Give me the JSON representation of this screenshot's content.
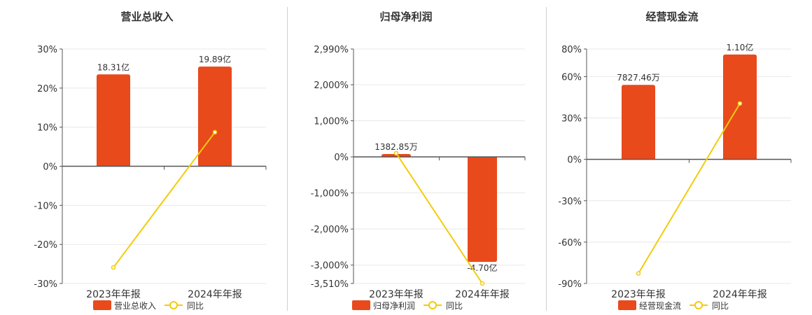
{
  "colors": {
    "bar": "#e84a1c",
    "line": "#f2cc0c",
    "grid": "#e8e8e8",
    "axis": "#555555",
    "text": "#333333",
    "divider": "#cfcfcf"
  },
  "chart_data": [
    {
      "type": "bar",
      "title": "营业总收入",
      "categories": [
        "2023年年报",
        "2024年年报"
      ],
      "series": [
        {
          "name": "营业总收入",
          "kind": "bar",
          "values": [
            23.5,
            25.5
          ],
          "labels": [
            "18.31亿",
            "19.89亿"
          ]
        },
        {
          "name": "同比",
          "kind": "line",
          "values": [
            -25.9,
            8.7
          ]
        }
      ],
      "ylim": [
        -30,
        30
      ],
      "yticks": [
        -30,
        -20,
        -10,
        0,
        10,
        20,
        30
      ],
      "ytick_labels": [
        "-30%",
        "-20%",
        "-10%",
        "0%",
        "10%",
        "20%",
        "30%"
      ],
      "grid": true,
      "legend": "bottom"
    },
    {
      "type": "bar",
      "title": "归母净利润",
      "categories": [
        "2023年年报",
        "2024年年报"
      ],
      "series": [
        {
          "name": "归母净利润",
          "kind": "bar",
          "values": [
            80,
            -2910
          ],
          "labels": [
            "1382.85万",
            "-4.70亿"
          ]
        },
        {
          "name": "同比",
          "kind": "line",
          "values": [
            100,
            -3510
          ]
        }
      ],
      "ylim": [
        -3510,
        2990
      ],
      "yticks": [
        -3510,
        -3000,
        -2000,
        -1000,
        0,
        1000,
        2000,
        2990
      ],
      "ytick_labels": [
        "-3,510%",
        "-3,000%",
        "-2,000%",
        "-1,000%",
        "0%",
        "1,000%",
        "2,000%",
        "2,990%"
      ],
      "grid": true,
      "legend": "bottom"
    },
    {
      "type": "bar",
      "title": "经营现金流",
      "categories": [
        "2023年年报",
        "2024年年报"
      ],
      "series": [
        {
          "name": "经营现金流",
          "kind": "bar",
          "values": [
            54,
            76
          ],
          "labels": [
            "7827.46万",
            "1.10亿"
          ]
        },
        {
          "name": "同比",
          "kind": "line",
          "values": [
            -82.7,
            40.5
          ]
        }
      ],
      "ylim": [
        -90,
        80
      ],
      "yticks": [
        -90,
        -60,
        -30,
        0,
        30,
        60,
        80
      ],
      "ytick_labels": [
        "-90%",
        "-60%",
        "-30%",
        "0%",
        "30%",
        "60%",
        "80%"
      ],
      "grid": true,
      "legend": "bottom"
    }
  ]
}
